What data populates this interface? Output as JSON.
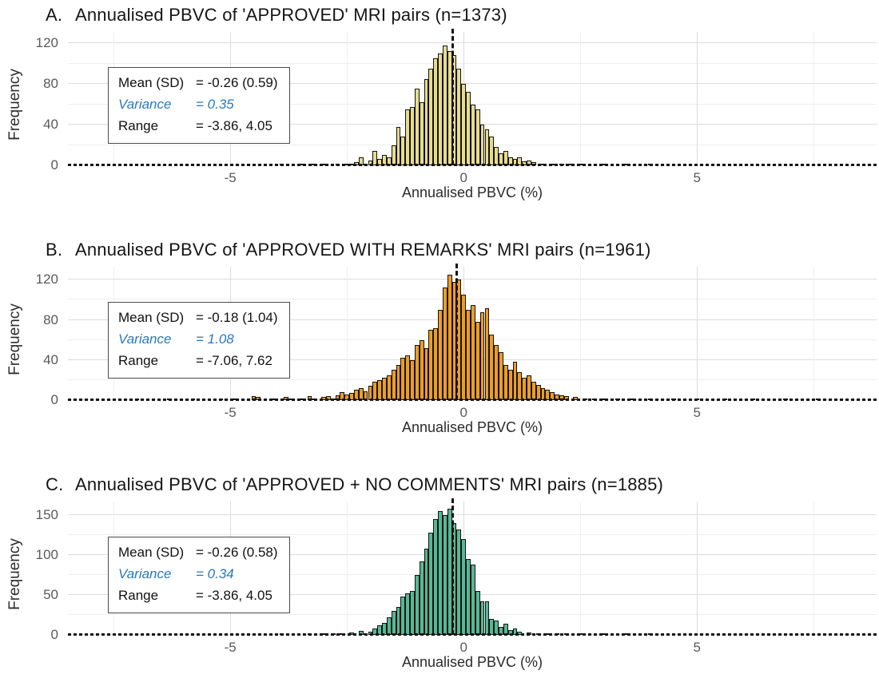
{
  "figure": {
    "background": "#ffffff",
    "xlabel": "Annualised PBVC (%)",
    "ylabel": "Frequency",
    "x_domain": [
      -8.48,
      8.85
    ],
    "x_ticks": [
      -5,
      0,
      5
    ],
    "x_minor": [
      -7.5,
      -2.5,
      2.5,
      7.5
    ],
    "grid_color_major": "#dcdcdc",
    "grid_color_minor": "#efefef",
    "axis_line_style": "dashed-black",
    "mean_line_style": "dashed-black-vertical",
    "variance_text_color": "#2878BE",
    "bar_border_color": "#141414"
  },
  "chart_data": [
    {
      "type": "bar",
      "subtype": "histogram",
      "panel_letter": "A.",
      "title": "Annualised PBVC of 'APPROVED' MRI pairs (n=1373)",
      "n": 1373,
      "fill": "#E7DC8E",
      "mean": -0.26,
      "xlabel": "Annualised PBVC (%)",
      "ylabel": "Frequency",
      "y_ticks": [
        0,
        40,
        80,
        120
      ],
      "y_minor": [
        20,
        60,
        100
      ],
      "y_max": 131,
      "bin_width": 0.1,
      "stats": [
        {
          "label": "Mean (SD)",
          "value": "= -0.26 (0.59)",
          "cls": ""
        },
        {
          "label": "Variance",
          "value": "= 0.35",
          "cls": "variance"
        },
        {
          "label": "Range",
          "value": "= -3.86, 4.05",
          "cls": ""
        }
      ],
      "bins": [
        [
          -3.9,
          2
        ],
        [
          -3.5,
          1
        ],
        [
          -3.2,
          1
        ],
        [
          -3.0,
          1
        ],
        [
          -2.7,
          1
        ],
        [
          -2.5,
          2
        ],
        [
          -2.4,
          2
        ],
        [
          -2.3,
          3
        ],
        [
          -2.2,
          8
        ],
        [
          -2.1,
          2
        ],
        [
          -2.0,
          5
        ],
        [
          -1.9,
          14
        ],
        [
          -1.8,
          6
        ],
        [
          -1.7,
          10
        ],
        [
          -1.6,
          8
        ],
        [
          -1.5,
          20
        ],
        [
          -1.4,
          38
        ],
        [
          -1.3,
          28
        ],
        [
          -1.2,
          55
        ],
        [
          -1.1,
          57
        ],
        [
          -1.0,
          75
        ],
        [
          -0.9,
          62
        ],
        [
          -0.8,
          85
        ],
        [
          -0.7,
          95
        ],
        [
          -0.6,
          105
        ],
        [
          -0.5,
          110
        ],
        [
          -0.4,
          118
        ],
        [
          -0.3,
          112
        ],
        [
          -0.2,
          108
        ],
        [
          -0.1,
          95
        ],
        [
          0.0,
          80
        ],
        [
          0.1,
          72
        ],
        [
          0.2,
          60
        ],
        [
          0.3,
          55
        ],
        [
          0.4,
          40
        ],
        [
          0.5,
          35
        ],
        [
          0.6,
          28
        ],
        [
          0.7,
          18
        ],
        [
          0.8,
          12
        ],
        [
          0.9,
          14
        ],
        [
          1.0,
          8
        ],
        [
          1.1,
          6
        ],
        [
          1.2,
          8
        ],
        [
          1.3,
          4
        ],
        [
          1.4,
          5
        ],
        [
          1.5,
          3
        ],
        [
          1.7,
          2
        ],
        [
          1.9,
          2
        ],
        [
          2.1,
          1
        ],
        [
          2.3,
          1
        ],
        [
          2.5,
          2
        ],
        [
          3.0,
          1
        ],
        [
          3.5,
          1
        ],
        [
          4.0,
          1
        ]
      ]
    },
    {
      "type": "bar",
      "subtype": "histogram",
      "panel_letter": "B.",
      "title": "Annualised PBVC of 'APPROVED WITH REMARKS' MRI pairs (n=1961)",
      "n": 1961,
      "fill": "#EC9D26",
      "mean": -0.18,
      "xlabel": "Annualised PBVC (%)",
      "ylabel": "Frequency",
      "y_ticks": [
        0,
        40,
        80,
        120
      ],
      "y_minor": [
        20,
        60,
        100
      ],
      "y_max": 133,
      "bin_width": 0.1,
      "stats": [
        {
          "label": "Mean (SD)",
          "value": "= -0.18 (1.04)",
          "cls": ""
        },
        {
          "label": "Variance",
          "value": "= 1.08",
          "cls": "variance"
        },
        {
          "label": "Range",
          "value": "= -7.06, 7.62",
          "cls": ""
        }
      ],
      "bins": [
        [
          -7.0,
          1
        ],
        [
          -6.3,
          1
        ],
        [
          -5.8,
          1
        ],
        [
          -5.2,
          1
        ],
        [
          -4.9,
          1
        ],
        [
          -4.5,
          4
        ],
        [
          -4.4,
          3
        ],
        [
          -4.1,
          1
        ],
        [
          -3.8,
          3
        ],
        [
          -3.7,
          2
        ],
        [
          -3.5,
          1
        ],
        [
          -3.3,
          4
        ],
        [
          -3.2,
          2
        ],
        [
          -3.0,
          3
        ],
        [
          -2.9,
          4
        ],
        [
          -2.8,
          2
        ],
        [
          -2.7,
          5
        ],
        [
          -2.6,
          8
        ],
        [
          -2.5,
          6
        ],
        [
          -2.4,
          7
        ],
        [
          -2.3,
          10
        ],
        [
          -2.2,
          12
        ],
        [
          -2.1,
          9
        ],
        [
          -2.0,
          14
        ],
        [
          -1.9,
          18
        ],
        [
          -1.8,
          20
        ],
        [
          -1.7,
          22
        ],
        [
          -1.6,
          25
        ],
        [
          -1.5,
          30
        ],
        [
          -1.4,
          35
        ],
        [
          -1.3,
          42
        ],
        [
          -1.2,
          45
        ],
        [
          -1.1,
          40
        ],
        [
          -1.0,
          55
        ],
        [
          -0.9,
          60
        ],
        [
          -0.8,
          52
        ],
        [
          -0.7,
          70
        ],
        [
          -0.6,
          72
        ],
        [
          -0.5,
          90
        ],
        [
          -0.4,
          112
        ],
        [
          -0.3,
          125
        ],
        [
          -0.2,
          118
        ],
        [
          -0.1,
          120
        ],
        [
          0.0,
          105
        ],
        [
          0.1,
          90
        ],
        [
          0.2,
          95
        ],
        [
          0.3,
          78
        ],
        [
          0.4,
          88
        ],
        [
          0.5,
          92
        ],
        [
          0.6,
          65
        ],
        [
          0.7,
          55
        ],
        [
          0.8,
          48
        ],
        [
          0.9,
          35
        ],
        [
          1.0,
          30
        ],
        [
          1.1,
          38
        ],
        [
          1.2,
          28
        ],
        [
          1.3,
          22
        ],
        [
          1.4,
          25
        ],
        [
          1.5,
          18
        ],
        [
          1.6,
          15
        ],
        [
          1.7,
          12
        ],
        [
          1.8,
          10
        ],
        [
          1.9,
          8
        ],
        [
          2.0,
          6
        ],
        [
          2.1,
          5
        ],
        [
          2.2,
          4
        ],
        [
          2.4,
          3
        ],
        [
          2.6,
          2
        ],
        [
          2.8,
          2
        ],
        [
          3.0,
          2
        ],
        [
          3.3,
          1
        ],
        [
          3.6,
          1
        ],
        [
          4.0,
          1
        ],
        [
          4.5,
          1
        ],
        [
          5.0,
          1
        ],
        [
          5.6,
          1
        ],
        [
          6.2,
          1
        ],
        [
          6.9,
          1
        ],
        [
          7.6,
          1
        ]
      ]
    },
    {
      "type": "bar",
      "subtype": "histogram",
      "panel_letter": "C.",
      "title": "Annualised PBVC of 'APPROVED + NO COMMENTS' MRI pairs (n=1885)",
      "n": 1885,
      "fill": "#56B895",
      "mean": -0.26,
      "xlabel": "Annualised PBVC (%)",
      "ylabel": "Frequency",
      "y_ticks": [
        0,
        50,
        100,
        150
      ],
      "y_minor": [
        25,
        75,
        125
      ],
      "y_max": 167,
      "bin_width": 0.1,
      "stats": [
        {
          "label": "Mean (SD)",
          "value": "= -0.26 (0.58)",
          "cls": ""
        },
        {
          "label": "Variance",
          "value": "= 0.34",
          "cls": "variance"
        },
        {
          "label": "Range",
          "value": "= -3.86, 4.05",
          "cls": ""
        }
      ],
      "bins": [
        [
          -3.9,
          1
        ],
        [
          -3.3,
          1
        ],
        [
          -3.0,
          2
        ],
        [
          -2.8,
          1
        ],
        [
          -2.6,
          2
        ],
        [
          -2.4,
          3
        ],
        [
          -2.2,
          5
        ],
        [
          -2.1,
          2
        ],
        [
          -2.0,
          4
        ],
        [
          -1.9,
          8
        ],
        [
          -1.8,
          12
        ],
        [
          -1.7,
          15
        ],
        [
          -1.6,
          22
        ],
        [
          -1.5,
          30
        ],
        [
          -1.4,
          35
        ],
        [
          -1.3,
          48
        ],
        [
          -1.2,
          52
        ],
        [
          -1.1,
          55
        ],
        [
          -1.0,
          75
        ],
        [
          -0.9,
          92
        ],
        [
          -0.8,
          108
        ],
        [
          -0.7,
          128
        ],
        [
          -0.6,
          145
        ],
        [
          -0.5,
          155
        ],
        [
          -0.4,
          150
        ],
        [
          -0.3,
          158
        ],
        [
          -0.2,
          140
        ],
        [
          -0.1,
          132
        ],
        [
          0.0,
          120
        ],
        [
          0.1,
          95
        ],
        [
          0.2,
          88
        ],
        [
          0.3,
          55
        ],
        [
          0.4,
          42
        ],
        [
          0.5,
          42
        ],
        [
          0.6,
          20
        ],
        [
          0.7,
          18
        ],
        [
          0.8,
          10
        ],
        [
          0.9,
          14
        ],
        [
          1.0,
          6
        ],
        [
          1.1,
          8
        ],
        [
          1.2,
          4
        ],
        [
          1.4,
          3
        ],
        [
          1.6,
          2
        ],
        [
          1.8,
          2
        ],
        [
          2.0,
          1
        ],
        [
          2.2,
          1
        ],
        [
          2.5,
          1
        ],
        [
          3.0,
          1
        ],
        [
          3.5,
          1
        ],
        [
          4.0,
          1
        ]
      ]
    }
  ]
}
